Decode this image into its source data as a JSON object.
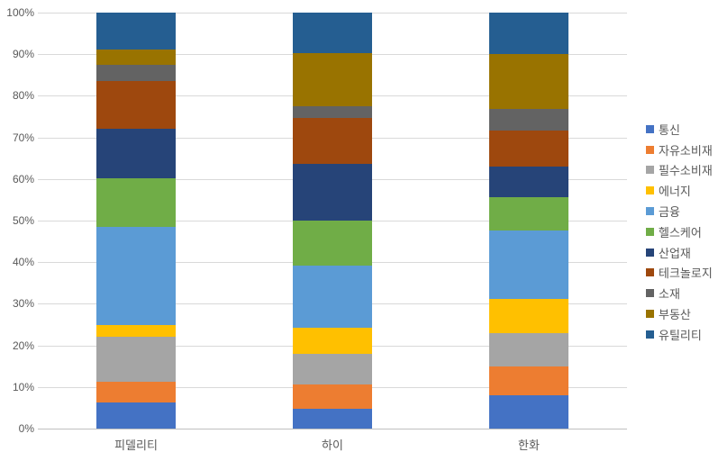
{
  "chart_data": {
    "type": "bar",
    "subtype": "stacked-100-percent",
    "orientation": "vertical",
    "title": "",
    "categories": [
      "피델리티",
      "하이",
      "한화"
    ],
    "series": [
      {
        "name": "통신",
        "color": "#4472C4",
        "values": [
          6.3,
          4.8,
          8.1
        ]
      },
      {
        "name": "자유소비재",
        "color": "#ED7D31",
        "values": [
          5.0,
          5.9,
          6.8
        ]
      },
      {
        "name": "필수소비재",
        "color": "#A5A5A5",
        "values": [
          10.8,
          7.2,
          8.1
        ]
      },
      {
        "name": "에너지",
        "color": "#FFC000",
        "values": [
          2.9,
          6.3,
          8.1
        ]
      },
      {
        "name": "금융",
        "color": "#5B9BD5",
        "values": [
          23.4,
          15.0,
          16.5
        ]
      },
      {
        "name": "헬스케어",
        "color": "#70AD47",
        "values": [
          11.8,
          10.8,
          8.0
        ]
      },
      {
        "name": "산업재",
        "color": "#264478",
        "values": [
          11.9,
          13.7,
          7.5
        ]
      },
      {
        "name": "테크놀로지",
        "color": "#9E480E",
        "values": [
          11.4,
          11.0,
          8.6
        ]
      },
      {
        "name": "소재",
        "color": "#636363",
        "values": [
          4.0,
          2.7,
          5.1
        ]
      },
      {
        "name": "부동산",
        "color": "#997300",
        "values": [
          3.6,
          12.9,
          13.3
        ]
      },
      {
        "name": "유틸리티",
        "color": "#255E91",
        "values": [
          8.9,
          9.7,
          9.9
        ]
      }
    ],
    "y_axis": {
      "min": 0,
      "max": 100,
      "step": 10,
      "tick_labels": [
        "0%",
        "10%",
        "20%",
        "30%",
        "40%",
        "50%",
        "60%",
        "70%",
        "80%",
        "90%",
        "100%"
      ]
    },
    "legend": {
      "position": "right",
      "entries": [
        "통신",
        "자유소비재",
        "필수소비재",
        "에너지",
        "금융",
        "헬스케어",
        "산업재",
        "테크놀로지",
        "소재",
        "부동산",
        "유틸리티"
      ]
    },
    "grid": true,
    "colors": {
      "gridline": "#D9D9D9",
      "axis_line": "#BFBFBF",
      "text": "#595959",
      "background": "#FFFFFF"
    }
  }
}
